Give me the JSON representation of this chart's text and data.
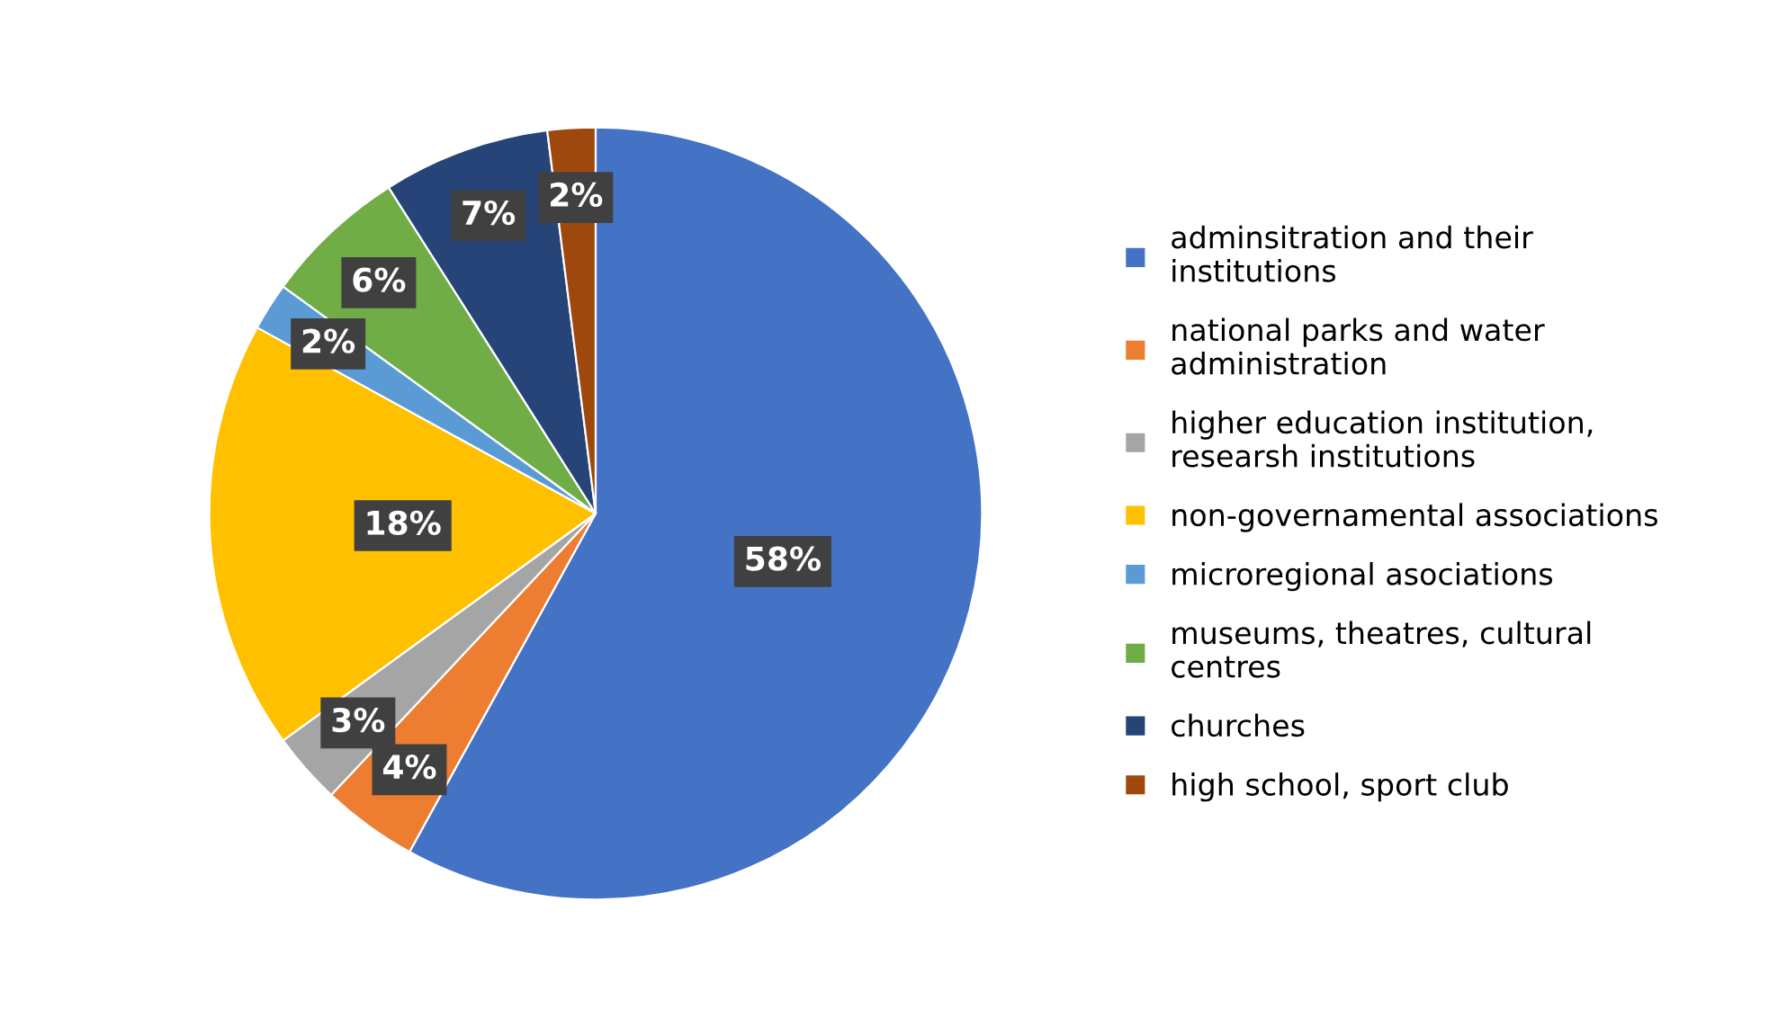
{
  "chart_data": {
    "type": "pie",
    "categories": [
      "adminsitration and their institutions",
      "national parks and water administration",
      "higher education institution, researsh institutions",
      "non-governamental associations",
      "microregional asociations",
      "museums, theatres, cultural centres",
      "churches",
      "high school, sport club"
    ],
    "values": [
      58,
      4,
      3,
      18,
      2,
      6,
      7,
      2
    ],
    "colors": [
      "#4472c4",
      "#ed7d31",
      "#a5a5a5",
      "#ffc000",
      "#5b9bd5",
      "#70ad47",
      "#264478",
      "#9e480e"
    ],
    "value_labels": [
      "58%",
      "4%",
      "3%",
      "18%",
      "2%",
      "6%",
      "7%",
      "2%"
    ],
    "legend": "right"
  }
}
